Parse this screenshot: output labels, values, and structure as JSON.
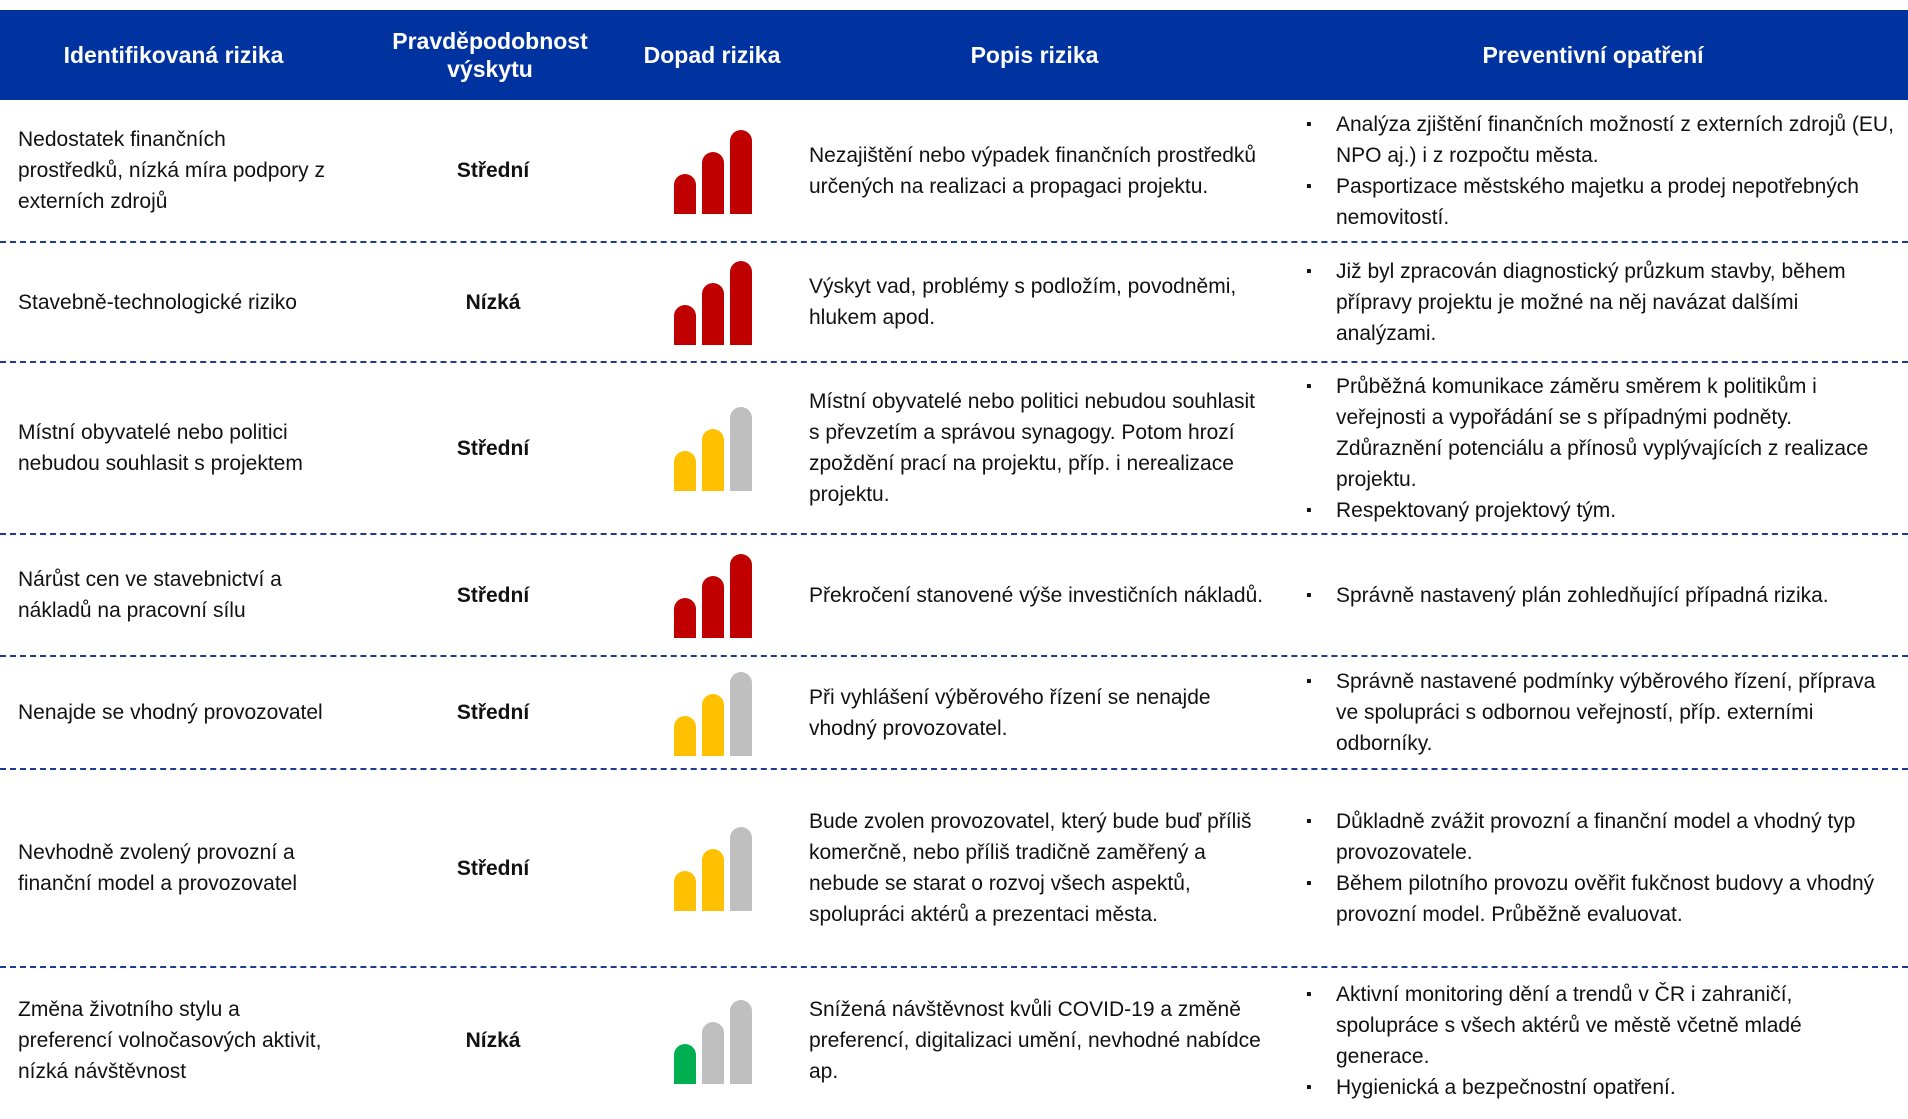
{
  "header": [
    "Identifikovaná rizika",
    "Pravděpodobnost výskytu",
    "Dopad rizika",
    "Popis rizika",
    "Preventivní opatření"
  ],
  "impact_colors": [
    "#00b050",
    "#ffc000",
    "#c00000"
  ],
  "empty_color": "#bfbfbf",
  "rows": [
    {
      "risk": "Nedostatek finančních prostředků, nízká míra podpory z externích zdrojů",
      "probability": "Střední",
      "impact": 3,
      "description": "Nezajištění nebo výpadek finančních prostředků určených na realizaci a propagaci projektu.",
      "measures": [
        "Analýza zjištění finančních možností z externích zdrojů (EU, NPO aj.) i z rozpočtu města.",
        "Pasportizace městského majetku a prodej nepotřebných nemovitostí."
      ]
    },
    {
      "risk": "Stavebně-technologické riziko",
      "probability": "Nízká",
      "impact": 3,
      "description": "Výskyt vad, problémy s podložím, povodněmi, hlukem apod.",
      "measures": [
        "Již byl zpracován diagnostický průzkum stavby, během přípravy projektu je možné na něj navázat dalšími analýzami."
      ]
    },
    {
      "risk": "Místní obyvatelé nebo politici nebudou souhlasit s projektem",
      "probability": "Střední",
      "impact": 2,
      "description": "Místní obyvatelé nebo politici nebudou souhlasit s převzetím a správou synagogy. Potom hrozí zpoždění prací na projektu, příp. i nerealizace projektu.",
      "measures": [
        "Průběžná komunikace záměru směrem k politikům i veřejnosti a vypořádání se s případnými podněty. Zdůraznění potenciálu a přínosů vyplývajících z realizace projektu.",
        "Respektovaný projektový tým."
      ]
    },
    {
      "risk": "Nárůst cen ve stavebnictví a nákladů na pracovní sílu",
      "probability": "Střední",
      "impact": 3,
      "description": "Překročení stanovené výše investičních nákladů.",
      "measures": [
        "Správně nastavený plán zohledňující případná rizika."
      ]
    },
    {
      "risk": "Nenajde se vhodný provozovatel",
      "probability": "Střední",
      "impact": 2,
      "description": "Při vyhlášení výběrového řízení se nenajde vhodný provozovatel.",
      "measures": [
        "Správně nastavené podmínky výběrového řízení, příprava ve spolupráci s odbornou veřejností, příp. externími odborníky."
      ]
    },
    {
      "risk": "Nevhodně zvolený provozní a finanční model a provozovatel",
      "probability": "Střední",
      "impact": 2,
      "description": "Bude zvolen provozovatel, který bude buď příliš komerčně, nebo příliš tradičně zaměřený a nebude se starat o rozvoj všech aspektů, spolupráci aktérů a prezentaci města.",
      "measures": [
        "Důkladně zvážit provozní a finanční model a vhodný typ provozovatele.",
        "Během pilotního provozu ověřit fukčnost budovy a vhodný provozní model. Průběžně evaluovat."
      ]
    },
    {
      "risk": "Změna životního stylu a preferencí volnočasových aktivit, nízká návštěvnost",
      "probability": "Nízká",
      "impact": 1,
      "description": "Snížená návštěvnost kvůli COVID-19 a změně preferencí, digitalizaci umění, nevhodné nabídce ap.",
      "measures": [
        "Aktivní monitoring dění a trendů v ČR i zahraničí, spolupráce s všech aktérů ve městě včetně mladé generace.",
        "Hygienická a bezpečnostní opatření."
      ]
    }
  ]
}
